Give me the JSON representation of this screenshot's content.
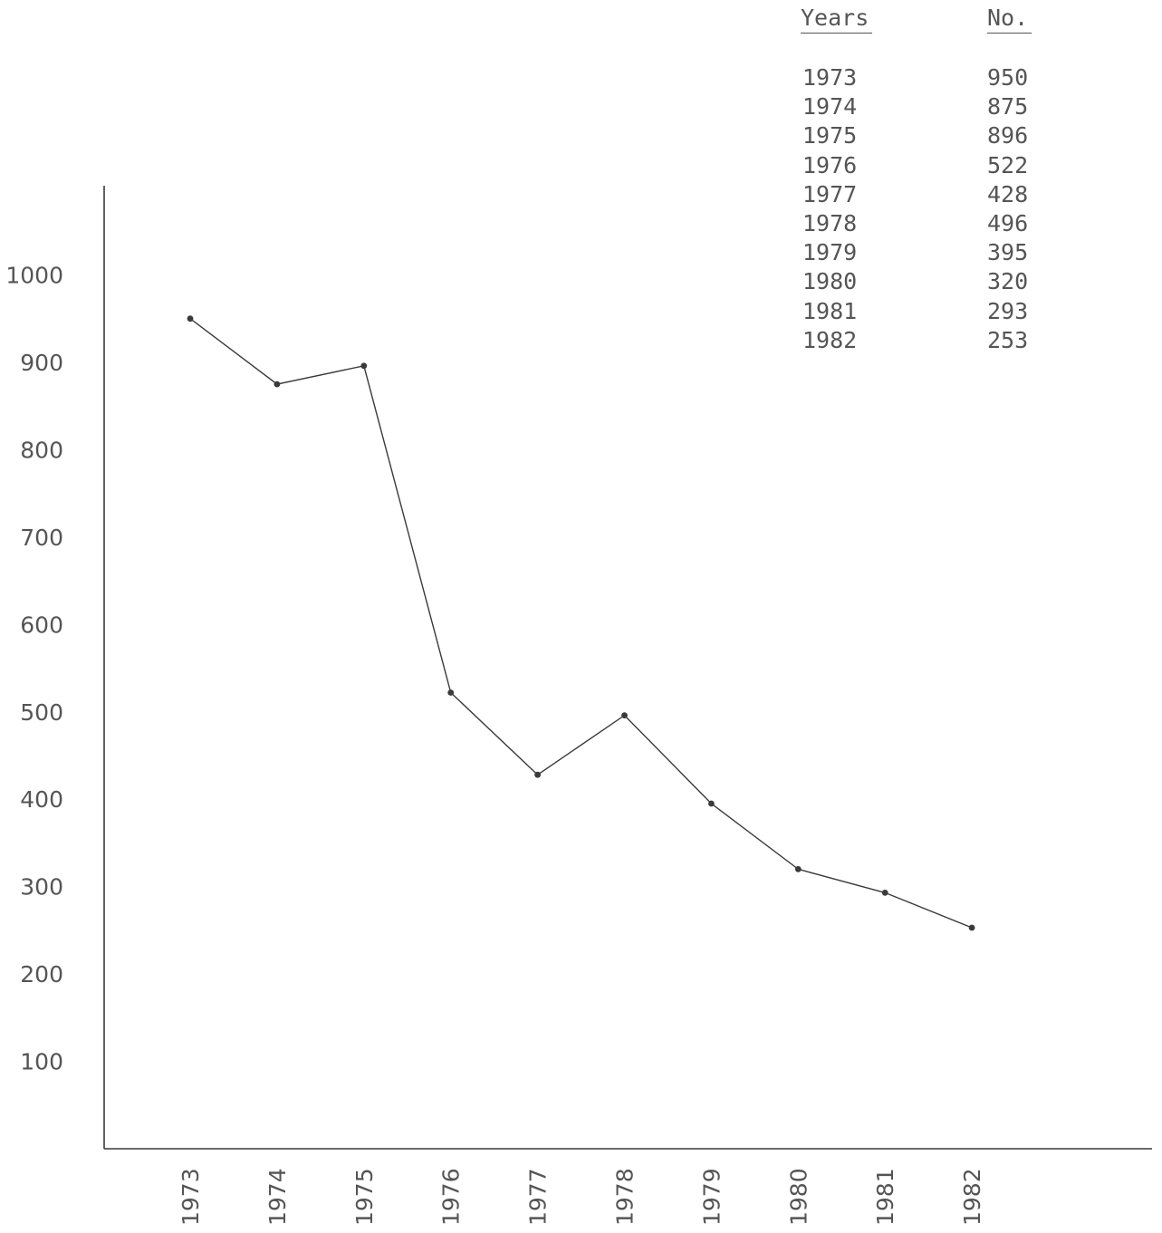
{
  "chart_data": {
    "type": "line",
    "title": "",
    "xlabel": "",
    "ylabel": "",
    "x": [
      "1973",
      "1974",
      "1975",
      "1976",
      "1977",
      "1978",
      "1979",
      "1980",
      "1981",
      "1982"
    ],
    "y_ticks": [
      "1000",
      "900",
      "800",
      "700",
      "600",
      "500",
      "400",
      "300",
      "200",
      "100"
    ],
    "ylim": [
      0,
      1100
    ],
    "series": [
      {
        "values": [
          950,
          875,
          896,
          522,
          428,
          496,
          395,
          320,
          293,
          253
        ]
      }
    ],
    "grid": false,
    "legend": "none"
  },
  "table": {
    "headers": {
      "years": "Years",
      "no": "No."
    },
    "rows": [
      {
        "year": "1973",
        "no": "950"
      },
      {
        "year": "1974",
        "no": "875"
      },
      {
        "year": "1975",
        "no": "896"
      },
      {
        "year": "1976",
        "no": "522"
      },
      {
        "year": "1977",
        "no": "428"
      },
      {
        "year": "1978",
        "no": "496"
      },
      {
        "year": "1979",
        "no": "395"
      },
      {
        "year": "1980",
        "no": "320"
      },
      {
        "year": "1981",
        "no": "293"
      },
      {
        "year": "1982",
        "no": "253"
      }
    ]
  },
  "colors": {
    "ink": "#3a3a3a",
    "text": "#555555",
    "background": "#ffffff"
  }
}
